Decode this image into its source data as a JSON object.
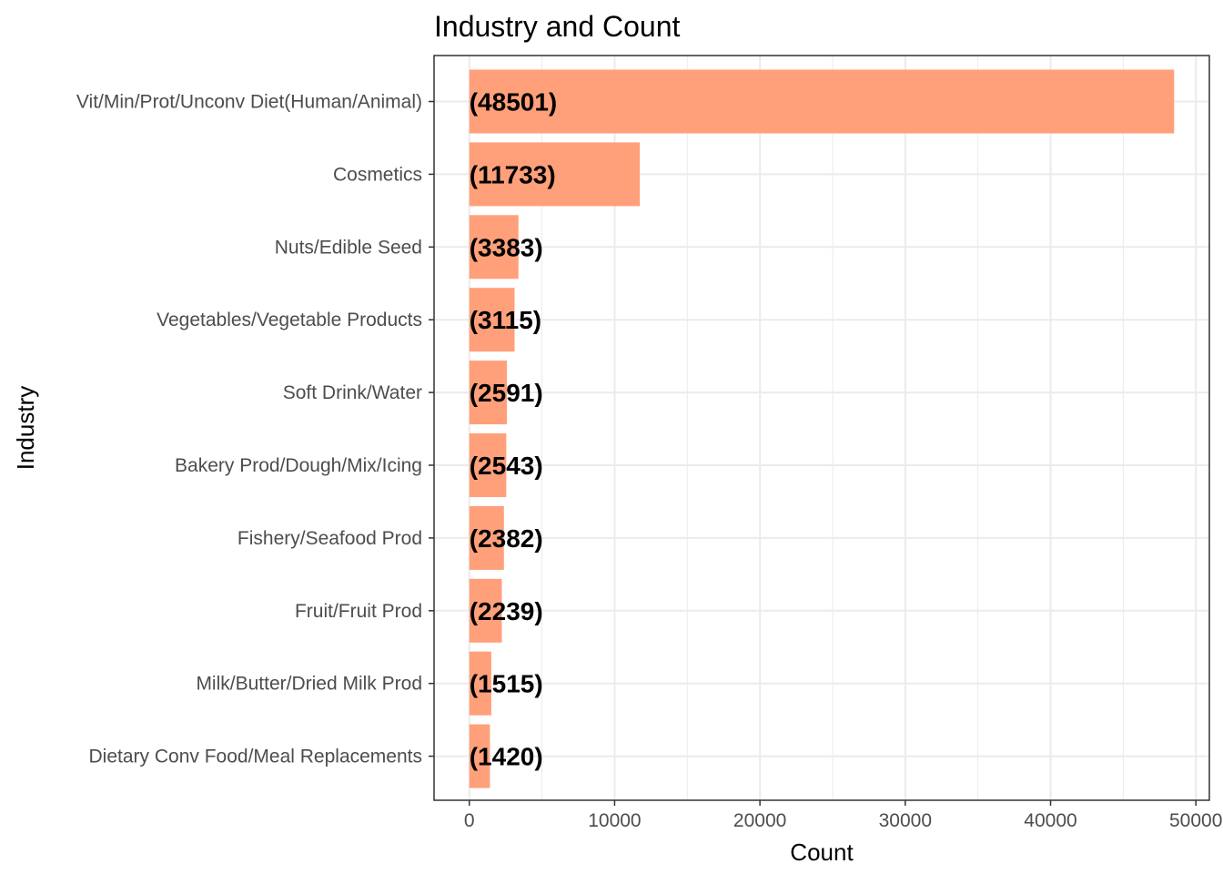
{
  "chart_data": {
    "type": "bar",
    "orientation": "horizontal",
    "title": "Industry and Count",
    "xlabel": "Count",
    "ylabel": "Industry",
    "categories": [
      "Vit/Min/Prot/Unconv Diet(Human/Animal)",
      "Cosmetics",
      "Nuts/Edible Seed",
      "Vegetables/Vegetable Products",
      "Soft Drink/Water",
      "Bakery Prod/Dough/Mix/Icing",
      "Fishery/Seafood Prod",
      "Fruit/Fruit Prod",
      "Milk/Butter/Dried Milk Prod",
      "Dietary Conv Food/Meal Replacements"
    ],
    "values": [
      48501,
      11733,
      3383,
      3115,
      2591,
      2543,
      2382,
      2239,
      1515,
      1420
    ],
    "data_labels": [
      "(48501)",
      "(11733)",
      "(3383)",
      "(3115)",
      "(2591)",
      "(2543)",
      "(2382)",
      "(2239)",
      "(1515)",
      "(1420)"
    ],
    "x_ticks": [
      0,
      10000,
      20000,
      30000,
      40000,
      50000
    ],
    "x_tick_labels": [
      "0",
      "10000",
      "20000",
      "30000",
      "40000",
      "50000"
    ],
    "xlim": [
      -2425,
      50926
    ],
    "grid": true,
    "legend": "none",
    "colors": {
      "bar": "#FFA07A",
      "grid": "#EBEBEB",
      "panel_border": "#333333",
      "tick_text": "#4D4D4D",
      "text": "#000000"
    }
  }
}
